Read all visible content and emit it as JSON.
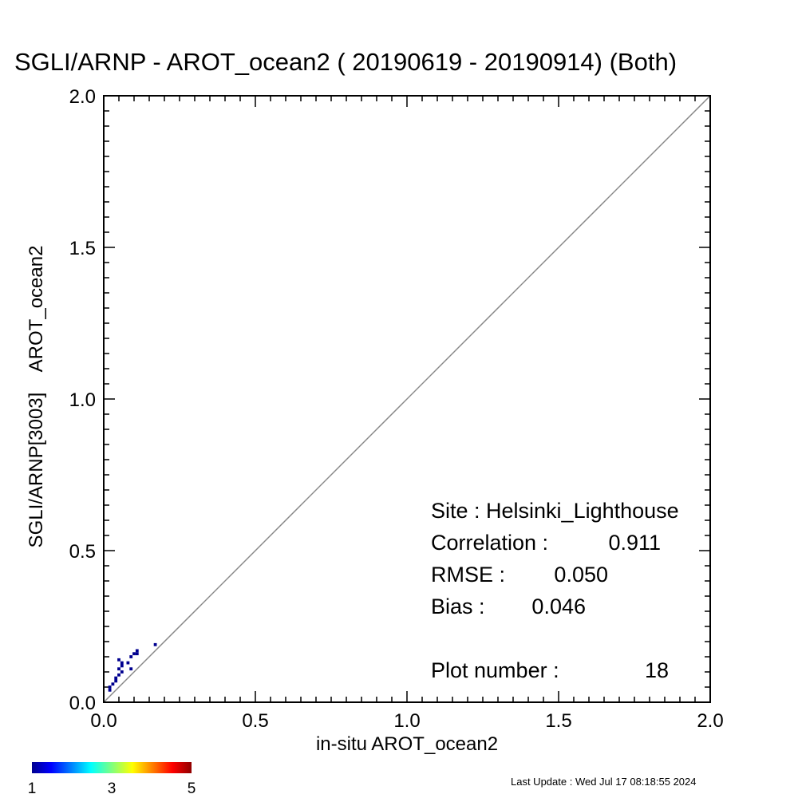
{
  "chart_data": {
    "type": "scatter",
    "title": "SGLI/ARNP - AROT_ocean2 ( 20190619 - 20190914) (Both)",
    "xlabel": "in-situ AROT_ocean2",
    "ylabel": "SGLI/ARNP[3003]    AROT_ocean2",
    "xlim": [
      0.0,
      2.0
    ],
    "ylim": [
      0.0,
      2.0
    ],
    "xticks": [
      "0.0",
      "0.5",
      "1.0",
      "1.5",
      "2.0"
    ],
    "yticks": [
      "0.0",
      "0.5",
      "1.0",
      "1.5",
      "2.0"
    ],
    "reference_line": "1:1",
    "grid": false,
    "bin_size": 0.01,
    "points": [
      {
        "x": 0.02,
        "y": 0.05
      },
      {
        "x": 0.03,
        "y": 0.06
      },
      {
        "x": 0.04,
        "y": 0.08
      },
      {
        "x": 0.05,
        "y": 0.09
      },
      {
        "x": 0.05,
        "y": 0.11
      },
      {
        "x": 0.06,
        "y": 0.12
      },
      {
        "x": 0.05,
        "y": 0.14
      },
      {
        "x": 0.06,
        "y": 0.13
      },
      {
        "x": 0.08,
        "y": 0.13
      },
      {
        "x": 0.09,
        "y": 0.11
      },
      {
        "x": 0.09,
        "y": 0.15
      },
      {
        "x": 0.1,
        "y": 0.16
      },
      {
        "x": 0.11,
        "y": 0.16
      },
      {
        "x": 0.11,
        "y": 0.17
      },
      {
        "x": 0.17,
        "y": 0.19
      },
      {
        "x": 0.02,
        "y": 0.04
      },
      {
        "x": 0.04,
        "y": 0.07
      },
      {
        "x": 0.06,
        "y": 0.1
      }
    ],
    "colorbar": {
      "min_label": "1",
      "mid_label": "3",
      "max_label": "5",
      "colormap": "jet"
    },
    "stats": {
      "site_label": "Site : ",
      "site_value": "Helsinki_Lighthouse",
      "correlation_label": "Correlation : ",
      "correlation_value": "0.911",
      "rmse_label": "RMSE : ",
      "rmse_value": "0.050",
      "bias_label": "Bias : ",
      "bias_value": "0.046",
      "plot_number_label": "Plot number : ",
      "plot_number_value": "18"
    },
    "last_update": "Last Update : Wed Jul 17 08:18:55 2024",
    "colors": {
      "point": "#00008f",
      "reference_line": "#888888",
      "axis": "#000000"
    }
  }
}
